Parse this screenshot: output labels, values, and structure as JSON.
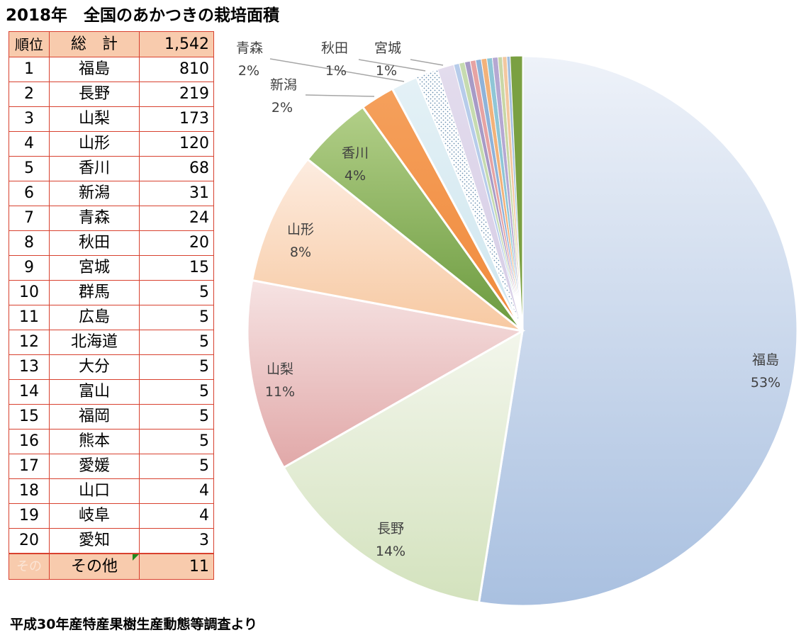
{
  "title": "2018年　全国のあかつきの栽培面積",
  "footer": "平成30年産特産果樹生産動態等調査より",
  "table": {
    "header": {
      "rank": "順位",
      "pref": "総　計",
      "value": "1,542"
    },
    "rows": [
      {
        "rank": "1",
        "pref": "福島",
        "value": "810"
      },
      {
        "rank": "2",
        "pref": "長野",
        "value": "219"
      },
      {
        "rank": "3",
        "pref": "山梨",
        "value": "173"
      },
      {
        "rank": "4",
        "pref": "山形",
        "value": "120"
      },
      {
        "rank": "5",
        "pref": "香川",
        "value": "68"
      },
      {
        "rank": "6",
        "pref": "新潟",
        "value": "31"
      },
      {
        "rank": "7",
        "pref": "青森",
        "value": "24"
      },
      {
        "rank": "8",
        "pref": "秋田",
        "value": "20"
      },
      {
        "rank": "9",
        "pref": "宮城",
        "value": "15"
      },
      {
        "rank": "10",
        "pref": "群馬",
        "value": "5"
      },
      {
        "rank": "11",
        "pref": "広島",
        "value": "5"
      },
      {
        "rank": "12",
        "pref": "北海道",
        "value": "5"
      },
      {
        "rank": "13",
        "pref": "大分",
        "value": "5"
      },
      {
        "rank": "14",
        "pref": "富山",
        "value": "5"
      },
      {
        "rank": "15",
        "pref": "福岡",
        "value": "5"
      },
      {
        "rank": "16",
        "pref": "熊本",
        "value": "5"
      },
      {
        "rank": "17",
        "pref": "愛媛",
        "value": "5"
      },
      {
        "rank": "18",
        "pref": "山口",
        "value": "4"
      },
      {
        "rank": "19",
        "pref": "岐阜",
        "value": "4"
      },
      {
        "rank": "20",
        "pref": "愛知",
        "value": "3"
      }
    ],
    "footer": {
      "rank_ghost": "その",
      "pref": "その他",
      "value": "11"
    }
  },
  "chart_data": {
    "type": "pie",
    "slices": [
      {
        "name": "福島",
        "value": 810,
        "label": "53%",
        "color_a": "#eef2f9",
        "color_b": "#a9c0e0"
      },
      {
        "name": "長野",
        "value": 219,
        "label": "14%",
        "color_a": "#f3f6ec",
        "color_b": "#d3e2bd"
      },
      {
        "name": "山梨",
        "value": 173,
        "label": "11%",
        "color_a": "#f6e3e3",
        "color_b": "#e1a8a8"
      },
      {
        "name": "山形",
        "value": 120,
        "label": "8%",
        "color_a": "#fdece0",
        "color_b": "#f7c9a2"
      },
      {
        "name": "香川",
        "value": 68,
        "label": "4%",
        "color_a": "#b2cf88",
        "color_b": "#6b9a3e"
      },
      {
        "name": "新潟",
        "value": 31,
        "label": "2%",
        "color_a": "#f5a05c",
        "color_b": "#f08a3c"
      },
      {
        "name": "青森",
        "value": 24,
        "label": "2%",
        "color_a": "#e4f1f6",
        "color_b": "#cfe6ef"
      },
      {
        "name": "秋田",
        "value": 20,
        "label": "1%",
        "color_a": "#ffffff",
        "color_b": "#ffffff",
        "dotted": true
      },
      {
        "name": "宮城",
        "value": 15,
        "label": "1%",
        "color_a": "#e3dced",
        "color_b": "#d6cde6"
      },
      {
        "name": "群馬",
        "value": 5,
        "color_a": "#b7ccea",
        "color_b": "#b7ccea"
      },
      {
        "name": "広島",
        "value": 5,
        "color_a": "#c6dbb0",
        "color_b": "#c6dbb0"
      },
      {
        "name": "北海道",
        "value": 5,
        "color_a": "#a79bc6",
        "color_b": "#a79bc6"
      },
      {
        "name": "大分",
        "value": 5,
        "color_a": "#e6a3a3",
        "color_b": "#e6a3a3"
      },
      {
        "name": "富山",
        "value": 5,
        "color_a": "#8fb3d9",
        "color_b": "#8fb3d9"
      },
      {
        "name": "福岡",
        "value": 5,
        "color_a": "#f2b27a",
        "color_b": "#f2b27a"
      },
      {
        "name": "熊本",
        "value": 5,
        "color_a": "#8fc6d6",
        "color_b": "#8fc6d6"
      },
      {
        "name": "愛媛",
        "value": 5,
        "color_a": "#b5a8d2",
        "color_b": "#b5a8d2"
      },
      {
        "name": "山口",
        "value": 4,
        "color_a": "#c9d7a6",
        "color_b": "#c9d7a6"
      },
      {
        "name": "岐阜",
        "value": 4,
        "color_a": "#f2c7a0",
        "color_b": "#f2c7a0"
      },
      {
        "name": "愛知",
        "value": 3,
        "color_a": "#a3bfe0",
        "color_b": "#a3bfe0"
      },
      {
        "name": "その他",
        "value": 11,
        "color_a": "#7aa042",
        "color_b": "#7aa042"
      }
    ],
    "total": 1542
  }
}
